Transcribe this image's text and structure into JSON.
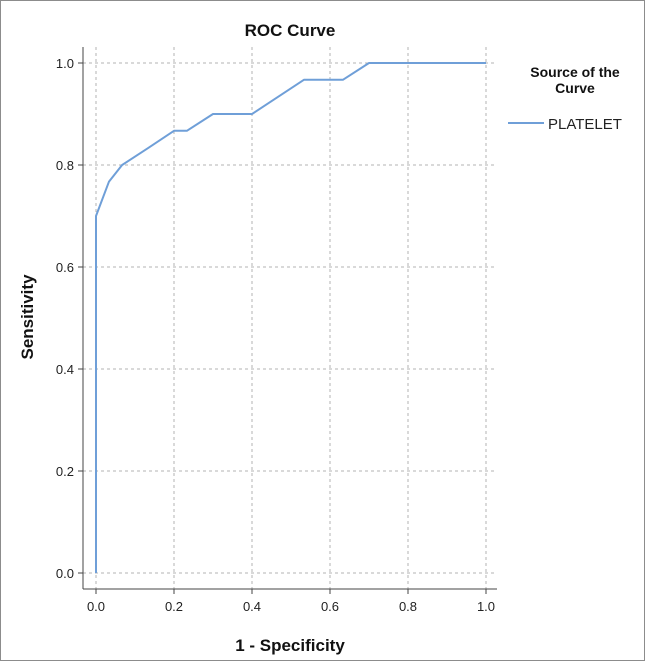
{
  "chart_data": {
    "type": "line",
    "title": "ROC Curve",
    "xlabel": "1 - Specificity",
    "ylabel": "Sensitivity",
    "xlim": [
      0,
      1
    ],
    "ylim": [
      0,
      1
    ],
    "x_ticks": [
      "0.0",
      "0.2",
      "0.4",
      "0.6",
      "0.8",
      "1.0"
    ],
    "y_ticks": [
      "0.0",
      "0.2",
      "0.4",
      "0.6",
      "0.8",
      "1.0"
    ],
    "grid": true,
    "legend": {
      "title_lines": [
        "Source of the",
        "Curve"
      ],
      "placement": "right"
    },
    "series": [
      {
        "name": "PLATELET",
        "color": "#6f9fd8",
        "points": [
          [
            0.0,
            0.0
          ],
          [
            0.0,
            0.7
          ],
          [
            0.033,
            0.767
          ],
          [
            0.067,
            0.8
          ],
          [
            0.133,
            0.833
          ],
          [
            0.2,
            0.867
          ],
          [
            0.233,
            0.867
          ],
          [
            0.3,
            0.9
          ],
          [
            0.4,
            0.9
          ],
          [
            0.533,
            0.967
          ],
          [
            0.633,
            0.967
          ],
          [
            0.7,
            1.0
          ],
          [
            1.0,
            1.0
          ]
        ]
      }
    ]
  }
}
